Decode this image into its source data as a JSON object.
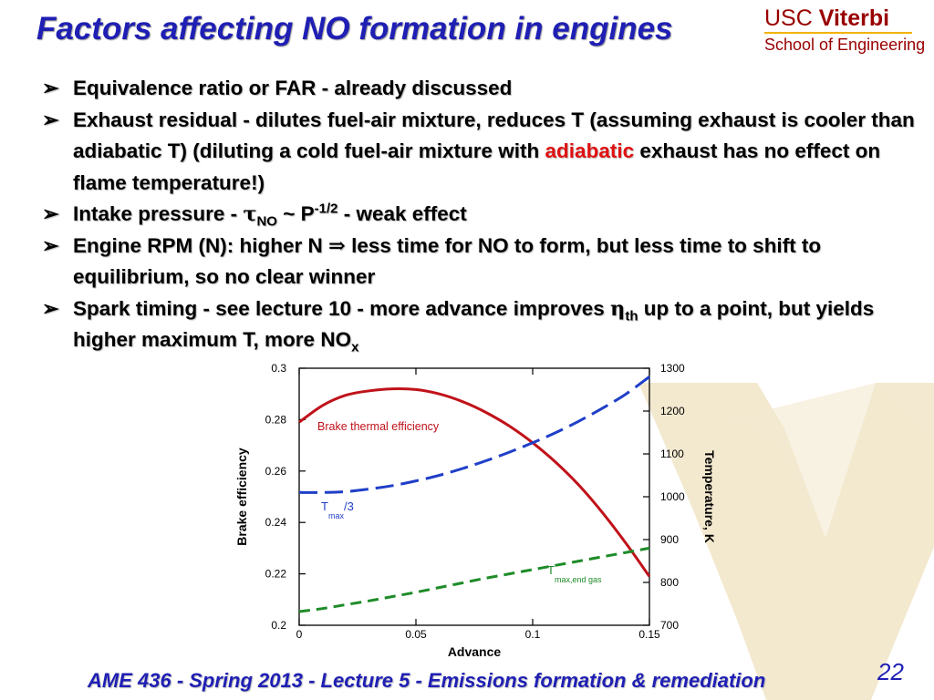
{
  "slide": {
    "title": "Factors affecting NO formation in engines",
    "logo": {
      "line1_a": "USC ",
      "line1_b": "Viterbi",
      "line2": "School of Engineering"
    },
    "footer": "AME 436 - Spring 2013 - Lecture 5 - Emissions formation & remediation",
    "page_number": "22"
  },
  "bullets": {
    "b1": "Equivalence ratio or FAR - already discussed",
    "b2_part1": "Exhaust residual - dilutes fuel-air mixture, reduces T (assuming exhaust is cooler than adiabatic T) (diluting a cold fuel-air mixture with ",
    "b2_highlight": "adiabatic",
    "b2_part2": " exhaust has no effect on flame temperature!)",
    "b3_pre": "Intake pressure - ",
    "b3_tau": "τ",
    "b3_tau_sub": "NO",
    "b3_mid": " ~ P",
    "b3_sup": "-1/2",
    "b3_post": " - weak effect",
    "b4_pre": "Engine RPM (N):  higher N ",
    "b4_implies": "⇒",
    "b4_post": " less time for NO to form, but less time to shift to equilibrium, so no clear winner",
    "b5_pre": "Spark timing - see lecture 10 - more advance improves ",
    "b5_eta": "η",
    "b5_eta_sub": "th",
    "b5_mid": " up to a point, but yields higher maximum T, more NO",
    "b5_sub": "x"
  },
  "chart_data": {
    "type": "line",
    "xlabel": "Advance",
    "ylabel_left": "Brake efficiency",
    "ylabel_right": "Temperature, K",
    "xlim": [
      0,
      0.15
    ],
    "ylim_left": [
      0.2,
      0.3
    ],
    "ylim_right": [
      700,
      1300
    ],
    "x_ticks": [
      "0",
      "0.05",
      "0.1",
      "0.15"
    ],
    "y_ticks_left": [
      "0.2",
      "0.22",
      "0.24",
      "0.26",
      "0.28",
      "0.3"
    ],
    "y_ticks_right": [
      "700",
      "800",
      "900",
      "1000",
      "1100",
      "1200",
      "1300"
    ],
    "grid": false,
    "series": [
      {
        "name": "Brake thermal efficiency",
        "axis": "left",
        "color": "#c0121a",
        "style": "solid",
        "x": [
          0,
          0.01,
          0.02,
          0.03,
          0.04,
          0.05,
          0.06,
          0.07,
          0.08,
          0.09,
          0.1,
          0.11,
          0.12,
          0.13,
          0.14,
          0.15
        ],
        "y": [
          0.279,
          0.2855,
          0.2895,
          0.2912,
          0.292,
          0.2917,
          0.29,
          0.287,
          0.2828,
          0.2775,
          0.271,
          0.2633,
          0.2543,
          0.2437,
          0.2318,
          0.219
        ]
      },
      {
        "name": "Tmax/3",
        "label_main": "T",
        "label_sub": "max",
        "label_post": "/3",
        "axis": "right",
        "color": "#1f3fc8",
        "style": "dashed",
        "x": [
          0,
          0.01,
          0.02,
          0.03,
          0.04,
          0.05,
          0.06,
          0.07,
          0.08,
          0.09,
          0.1,
          0.11,
          0.12,
          0.13,
          0.14,
          0.15
        ],
        "y": [
          1010,
          1010,
          1012,
          1018,
          1026,
          1037,
          1050,
          1066,
          1084,
          1104,
          1126,
          1150,
          1177,
          1207,
          1240,
          1280
        ]
      },
      {
        "name": "Tmax,end gas",
        "label_main": "T",
        "label_sub": "max,end gas",
        "axis": "right",
        "color": "#1e8c28",
        "style": "dashed",
        "x": [
          0,
          0.01,
          0.02,
          0.03,
          0.04,
          0.05,
          0.06,
          0.07,
          0.08,
          0.09,
          0.1,
          0.11,
          0.12,
          0.13,
          0.14,
          0.15
        ],
        "y": [
          732,
          739,
          748,
          757,
          767,
          777,
          788,
          799,
          810,
          820,
          830,
          840,
          850,
          860,
          870,
          880
        ]
      }
    ]
  }
}
